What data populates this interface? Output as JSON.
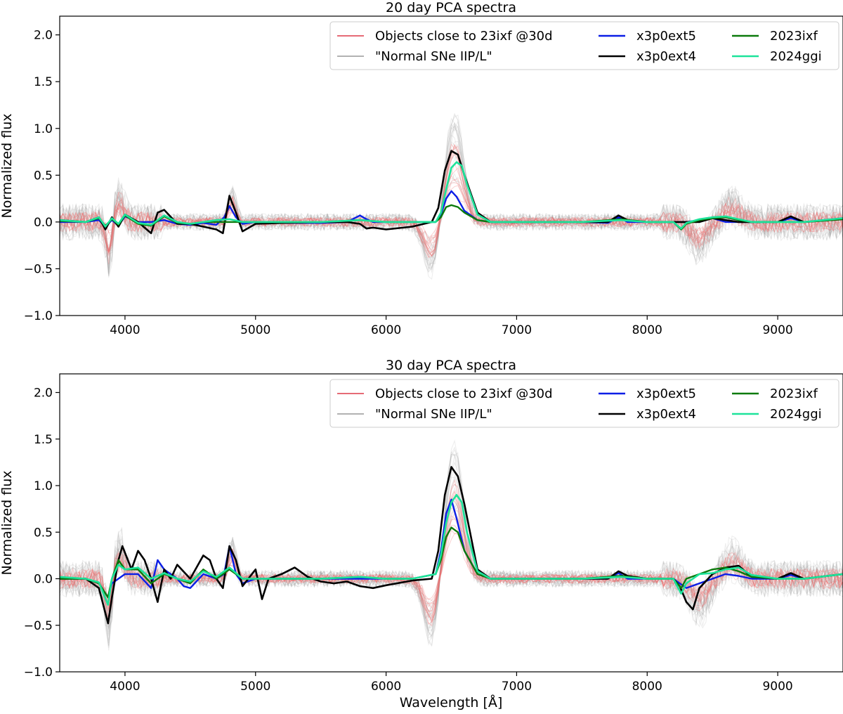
{
  "chart_data": [
    {
      "type": "line",
      "title": "20 day PCA spectra",
      "xlabel": "",
      "ylabel": "Normalized flux",
      "xlim": [
        3500,
        9500
      ],
      "ylim": [
        -1.0,
        2.2
      ],
      "xticks": [
        4000,
        5000,
        6000,
        7000,
        8000,
        9000
      ],
      "yticks": [
        -1.0,
        -0.5,
        0.0,
        0.5,
        1.0,
        1.5,
        2.0
      ],
      "xtick_labels": [
        "4000",
        "5000",
        "6000",
        "7000",
        "8000",
        "9000"
      ],
      "ytick_labels": [
        "−1.0",
        "−0.5",
        "0.0",
        "0.5",
        "1.0",
        "1.5",
        "2.0"
      ],
      "legend_position": "top-right",
      "legend": [
        "Objects close to 23ixf @30d",
        "\"Normal SNe IIP/L\"",
        "x3p0ext5",
        "x3p0ext4",
        "2023ixf",
        "2024ggi"
      ],
      "series": [
        {
          "name": "x3p0ext5",
          "color": "#0a1ee6",
          "x": [
            3500,
            3700,
            3800,
            3850,
            3900,
            3950,
            4000,
            4100,
            4200,
            4300,
            4400,
            4500,
            4600,
            4700,
            4760,
            4800,
            4850,
            4900,
            5000,
            5200,
            5500,
            5700,
            5800,
            5850,
            5900,
            6000,
            6200,
            6380,
            6420,
            6460,
            6500,
            6540,
            6600,
            6700,
            6800,
            7000,
            7500,
            7700,
            7780,
            7850,
            8000,
            8200,
            8300,
            8400,
            8500,
            8600,
            8700,
            8800,
            9000,
            9100,
            9200,
            9500
          ],
          "y": [
            0,
            0,
            0.02,
            -0.05,
            0.02,
            -0.04,
            0.06,
            0.0,
            0.0,
            0.02,
            -0.02,
            -0.03,
            -0.01,
            -0.03,
            0.05,
            0.17,
            0.05,
            -0.02,
            0.0,
            -0.01,
            -0.01,
            0.0,
            0.07,
            0.03,
            0.0,
            0.0,
            0.0,
            0.0,
            0.08,
            0.25,
            0.33,
            0.27,
            0.12,
            0.02,
            0.0,
            0.0,
            0.0,
            -0.01,
            0.05,
            0.0,
            0.0,
            0.0,
            0.0,
            0.02,
            0.04,
            0.0,
            0.0,
            0.0,
            0.0,
            0.04,
            0.0,
            0.04
          ]
        },
        {
          "name": "x3p0ext4",
          "color": "#000000",
          "x": [
            3500,
            3700,
            3800,
            3850,
            3900,
            3950,
            4000,
            4100,
            4200,
            4250,
            4300,
            4400,
            4500,
            4600,
            4700,
            4750,
            4800,
            4850,
            4900,
            5000,
            5200,
            5500,
            5700,
            5800,
            5850,
            5900,
            6000,
            6200,
            6350,
            6400,
            6450,
            6500,
            6550,
            6600,
            6700,
            6800,
            7000,
            7500,
            7700,
            7780,
            7850,
            8000,
            8200,
            8300,
            8400,
            8500,
            8600,
            8700,
            8800,
            9000,
            9100,
            9200,
            9500
          ],
          "y": [
            0.02,
            0.0,
            0.05,
            -0.08,
            0.05,
            -0.05,
            0.08,
            0.0,
            -0.12,
            0.1,
            0.13,
            -0.02,
            -0.02,
            -0.05,
            -0.08,
            -0.12,
            0.28,
            0.1,
            -0.1,
            -0.02,
            -0.01,
            0.0,
            0.0,
            -0.02,
            -0.07,
            -0.06,
            -0.08,
            -0.05,
            0.0,
            0.15,
            0.55,
            0.76,
            0.72,
            0.5,
            0.1,
            0.0,
            0.0,
            0.0,
            0.0,
            0.07,
            0.02,
            0.0,
            0.0,
            0.0,
            0.0,
            0.04,
            0.02,
            0.0,
            0.0,
            0.0,
            0.06,
            0.0,
            0.03
          ]
        },
        {
          "name": "2023ixf",
          "color": "#0b7a0b",
          "x": [
            3500,
            3700,
            3800,
            3850,
            3900,
            3950,
            4000,
            4100,
            4200,
            4300,
            4400,
            4500,
            4600,
            4700,
            4800,
            4900,
            5000,
            5200,
            5500,
            5800,
            6000,
            6200,
            6380,
            6420,
            6460,
            6500,
            6550,
            6600,
            6700,
            6800,
            7000,
            7500,
            7800,
            8000,
            8200,
            8260,
            8300,
            8400,
            8500,
            8600,
            8700,
            8800,
            9000,
            9200,
            9500
          ],
          "y": [
            0.01,
            0.0,
            0.04,
            -0.04,
            0.03,
            -0.03,
            0.07,
            -0.02,
            -0.04,
            0.06,
            -0.01,
            -0.02,
            0.0,
            0.0,
            0.0,
            0.0,
            0.0,
            0.0,
            0.0,
            0.02,
            0.0,
            0.0,
            0.0,
            0.05,
            0.16,
            0.18,
            0.16,
            0.1,
            0.02,
            0.0,
            0.0,
            0.0,
            0.03,
            0.0,
            0.0,
            -0.08,
            -0.02,
            0.02,
            0.04,
            0.05,
            0.02,
            0.0,
            0.0,
            0.0,
            0.03
          ]
        },
        {
          "name": "2024ggi",
          "color": "#1de39a",
          "x": [
            3500,
            3700,
            3800,
            3850,
            3900,
            3950,
            4000,
            4100,
            4200,
            4300,
            4400,
            4500,
            4600,
            4700,
            4800,
            4900,
            5000,
            5200,
            5500,
            5800,
            6000,
            6200,
            6380,
            6420,
            6460,
            6500,
            6540,
            6580,
            6620,
            6700,
            6800,
            7000,
            7500,
            7800,
            8000,
            8200,
            8260,
            8300,
            8400,
            8500,
            8600,
            8700,
            8800,
            9000,
            9200,
            9500
          ],
          "y": [
            0.02,
            0.0,
            0.05,
            -0.05,
            0.04,
            -0.02,
            0.08,
            -0.01,
            -0.03,
            0.07,
            0.0,
            -0.02,
            0.0,
            0.02,
            0.03,
            0.0,
            0.0,
            0.0,
            0.0,
            0.02,
            0.0,
            0.0,
            0.0,
            0.1,
            0.35,
            0.58,
            0.64,
            0.6,
            0.4,
            0.08,
            0.0,
            0.0,
            0.0,
            0.02,
            0.0,
            0.0,
            -0.07,
            -0.01,
            0.03,
            0.05,
            0.06,
            0.03,
            0.0,
            0.0,
            0.0,
            0.04
          ]
        }
      ]
    },
    {
      "type": "line",
      "title": "30 day PCA spectra",
      "xlabel": "Wavelength [Å]",
      "ylabel": "Normalized flux",
      "xlim": [
        3500,
        9500
      ],
      "ylim": [
        -1.0,
        2.2
      ],
      "xticks": [
        4000,
        5000,
        6000,
        7000,
        8000,
        9000
      ],
      "yticks": [
        -1.0,
        -0.5,
        0.0,
        0.5,
        1.0,
        1.5,
        2.0
      ],
      "xtick_labels": [
        "4000",
        "5000",
        "6000",
        "7000",
        "8000",
        "9000"
      ],
      "ytick_labels": [
        "−1.0",
        "−0.5",
        "0.0",
        "0.5",
        "1.0",
        "1.5",
        "2.0"
      ],
      "legend_position": "top-right",
      "legend": [
        "Objects close to 23ixf @30d",
        "\"Normal SNe IIP/L\"",
        "x3p0ext5",
        "x3p0ext4",
        "2023ixf",
        "2024ggi"
      ],
      "series": [
        {
          "name": "x3p0ext5",
          "color": "#0a1ee6",
          "x": [
            3500,
            3700,
            3800,
            3870,
            3900,
            3950,
            4000,
            4100,
            4200,
            4250,
            4300,
            4400,
            4450,
            4500,
            4600,
            4700,
            4760,
            4800,
            4850,
            4900,
            5000,
            5100,
            5200,
            5500,
            5700,
            5850,
            6000,
            6200,
            6380,
            6420,
            6460,
            6500,
            6540,
            6600,
            6700,
            6800,
            7000,
            7500,
            7700,
            7780,
            7850,
            8000,
            8200,
            8300,
            8400,
            8500,
            8600,
            8700,
            8800,
            9000,
            9100,
            9200,
            9500
          ],
          "y": [
            0.0,
            0.0,
            -0.05,
            -0.2,
            -0.05,
            0.0,
            0.05,
            0.05,
            -0.1,
            0.2,
            0.1,
            0.0,
            -0.08,
            -0.1,
            0.05,
            0.0,
            0.05,
            0.35,
            0.05,
            -0.05,
            0.0,
            0.0,
            0.0,
            0.0,
            0.0,
            0.0,
            0.0,
            0.0,
            0.05,
            0.3,
            0.7,
            0.85,
            0.65,
            0.3,
            0.05,
            0.0,
            0.0,
            0.0,
            0.0,
            0.06,
            0.0,
            0.0,
            0.0,
            -0.1,
            -0.05,
            0.0,
            0.05,
            0.03,
            0.0,
            0.0,
            0.04,
            0.0,
            0.05
          ]
        },
        {
          "name": "x3p0ext4",
          "color": "#000000",
          "x": [
            3500,
            3700,
            3800,
            3870,
            3900,
            3950,
            3980,
            4050,
            4100,
            4150,
            4200,
            4250,
            4300,
            4350,
            4400,
            4500,
            4600,
            4650,
            4700,
            4750,
            4800,
            4850,
            4900,
            5000,
            5050,
            5100,
            5200,
            5300,
            5400,
            5500,
            5600,
            5700,
            5800,
            5900,
            6000,
            6200,
            6350,
            6400,
            6450,
            6500,
            6550,
            6600,
            6700,
            6800,
            7000,
            7500,
            7700,
            7780,
            7850,
            8000,
            8200,
            8250,
            8300,
            8350,
            8400,
            8500,
            8600,
            8700,
            8800,
            9000,
            9100,
            9200,
            9500
          ],
          "y": [
            0.0,
            0.0,
            -0.1,
            -0.48,
            -0.2,
            0.2,
            0.35,
            0.1,
            0.3,
            0.2,
            0.0,
            -0.25,
            0.1,
            0.0,
            0.15,
            0.0,
            0.25,
            0.2,
            0.0,
            -0.1,
            0.35,
            0.2,
            -0.08,
            0.1,
            -0.22,
            0.0,
            0.05,
            0.12,
            0.02,
            -0.03,
            -0.05,
            -0.03,
            -0.08,
            -0.1,
            -0.07,
            -0.02,
            0.0,
            0.3,
            0.9,
            1.2,
            1.1,
            0.8,
            0.1,
            0.0,
            0.0,
            0.0,
            0.0,
            0.08,
            0.03,
            0.0,
            0.0,
            -0.08,
            -0.25,
            -0.33,
            -0.1,
            0.05,
            0.12,
            0.14,
            0.02,
            0.0,
            0.06,
            0.0,
            0.05
          ]
        },
        {
          "name": "2023ixf",
          "color": "#0b7a0b",
          "x": [
            3500,
            3700,
            3800,
            3870,
            3900,
            3950,
            4000,
            4100,
            4200,
            4300,
            4400,
            4500,
            4600,
            4700,
            4800,
            4900,
            5000,
            5200,
            5500,
            5800,
            6000,
            6200,
            6380,
            6420,
            6460,
            6500,
            6550,
            6600,
            6700,
            6800,
            7000,
            7500,
            7800,
            8000,
            8200,
            8260,
            8300,
            8400,
            8500,
            8600,
            8700,
            8800,
            9000,
            9200,
            9500
          ],
          "y": [
            0.0,
            0.0,
            -0.05,
            -0.2,
            0.0,
            0.2,
            0.1,
            0.1,
            -0.05,
            0.05,
            0.0,
            -0.05,
            0.1,
            0.0,
            0.1,
            0.0,
            0.0,
            0.0,
            0.0,
            0.02,
            0.0,
            0.0,
            0.05,
            0.2,
            0.45,
            0.55,
            0.5,
            0.3,
            0.05,
            0.0,
            0.0,
            0.0,
            0.03,
            0.0,
            0.0,
            -0.1,
            0.0,
            0.05,
            0.1,
            0.12,
            0.08,
            0.02,
            0.0,
            0.0,
            0.05
          ]
        },
        {
          "name": "2024ggi",
          "color": "#1de39a",
          "x": [
            3500,
            3700,
            3800,
            3870,
            3900,
            3950,
            4000,
            4100,
            4200,
            4300,
            4400,
            4500,
            4600,
            4700,
            4800,
            4900,
            5000,
            5200,
            5500,
            5800,
            6000,
            6200,
            6380,
            6420,
            6460,
            6500,
            6540,
            6580,
            6620,
            6700,
            6800,
            7000,
            7500,
            7800,
            8000,
            8200,
            8260,
            8300,
            8400,
            8500,
            8600,
            8700,
            8800,
            9000,
            9200,
            9500
          ],
          "y": [
            0.02,
            0.0,
            -0.04,
            -0.28,
            0.0,
            0.15,
            0.1,
            0.12,
            0.0,
            0.06,
            0.0,
            -0.03,
            0.08,
            0.02,
            0.12,
            0.0,
            0.0,
            0.0,
            0.0,
            0.02,
            0.0,
            0.0,
            0.05,
            0.25,
            0.6,
            0.82,
            0.9,
            0.82,
            0.5,
            0.08,
            0.0,
            0.0,
            0.0,
            0.02,
            0.0,
            0.0,
            -0.16,
            -0.05,
            0.05,
            0.06,
            0.1,
            0.12,
            0.04,
            0.0,
            0.0,
            0.05
          ]
        }
      ]
    }
  ]
}
